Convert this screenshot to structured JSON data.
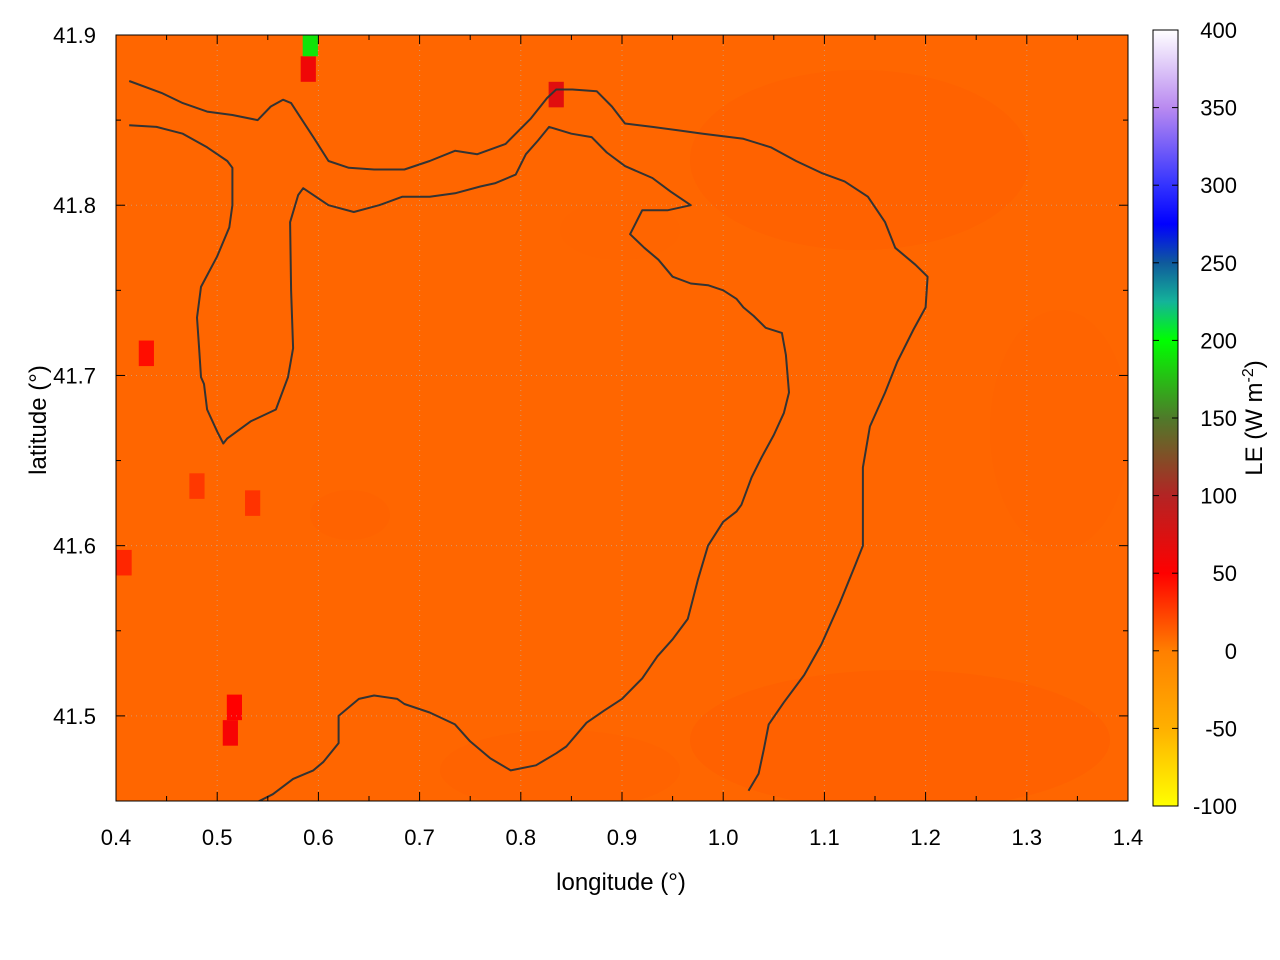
{
  "chart_data": {
    "type": "heatmap",
    "xlabel": "longitude (°)",
    "ylabel": "latitude (°)",
    "xlim": [
      0.4,
      1.4
    ],
    "ylim": [
      41.45,
      41.9
    ],
    "x_ticks": [
      "0.4",
      "0.5",
      "0.6",
      "0.7",
      "0.8",
      "0.9",
      "1.0",
      "1.1",
      "1.2",
      "1.3",
      "1.4"
    ],
    "x_tick_values": [
      0.4,
      0.5,
      0.6,
      0.7,
      0.8,
      0.9,
      1.0,
      1.1,
      1.2,
      1.3,
      1.4
    ],
    "y_ticks": [
      "41.5",
      "41.6",
      "41.7",
      "41.8",
      "41.9"
    ],
    "y_tick_values": [
      41.5,
      41.6,
      41.7,
      41.8,
      41.9
    ],
    "grid": true,
    "field_value": 10,
    "colorbar": {
      "label_base": "LE (W m",
      "label_sup": "-2",
      "label_end": ")",
      "range": [
        -100,
        400
      ],
      "ticks": [
        "400",
        "350",
        "300",
        "250",
        "200",
        "150",
        "100",
        "50",
        "0",
        "-50",
        "-100"
      ],
      "tick_values": [
        400,
        350,
        300,
        250,
        200,
        150,
        100,
        50,
        0,
        -50,
        -100
      ],
      "stops": [
        {
          "value": 400,
          "color": "#ffffff"
        },
        {
          "value": 350,
          "color": "#b98af0"
        },
        {
          "value": 300,
          "color": "#3333ff"
        },
        {
          "value": 275,
          "color": "#0000ff"
        },
        {
          "value": 250,
          "color": "#0f5a9c"
        },
        {
          "value": 225,
          "color": "#14b39a"
        },
        {
          "value": 200,
          "color": "#00ff00"
        },
        {
          "value": 150,
          "color": "#4f7a2a"
        },
        {
          "value": 100,
          "color": "#b32424"
        },
        {
          "value": 50,
          "color": "#ff0000"
        },
        {
          "value": 0,
          "color": "#ff7f00"
        },
        {
          "value": -50,
          "color": "#ffb000"
        },
        {
          "value": -100,
          "color": "#ffff00"
        }
      ]
    },
    "hotspots": [
      {
        "lon": 0.59,
        "lat": 41.88,
        "value": 60
      },
      {
        "lon": 0.592,
        "lat": 41.895,
        "value": 190
      },
      {
        "lon": 0.835,
        "lat": 41.865,
        "value": 70
      },
      {
        "lon": 0.43,
        "lat": 41.713,
        "value": 45
      },
      {
        "lon": 0.517,
        "lat": 41.505,
        "value": 50
      },
      {
        "lon": 0.513,
        "lat": 41.49,
        "value": 55
      },
      {
        "lon": 0.408,
        "lat": 41.59,
        "value": 35
      },
      {
        "lon": 0.535,
        "lat": 41.625,
        "value": 30
      },
      {
        "lon": 0.48,
        "lat": 41.635,
        "value": 28
      }
    ],
    "contours": [
      [
        [
          0.413,
          41.873
        ],
        [
          0.445,
          41.866
        ],
        [
          0.466,
          41.86
        ],
        [
          0.49,
          41.855
        ],
        [
          0.515,
          41.853
        ],
        [
          0.54,
          41.85
        ],
        [
          0.553,
          41.858
        ],
        [
          0.565,
          41.862
        ],
        [
          0.573,
          41.86
        ],
        [
          0.595,
          41.84
        ],
        [
          0.61,
          41.826
        ],
        [
          0.63,
          41.822
        ],
        [
          0.655,
          41.821
        ],
        [
          0.685,
          41.821
        ],
        [
          0.71,
          41.826
        ],
        [
          0.735,
          41.832
        ],
        [
          0.757,
          41.83
        ],
        [
          0.785,
          41.836
        ],
        [
          0.81,
          41.851
        ],
        [
          0.826,
          41.863
        ],
        [
          0.835,
          41.868
        ],
        [
          0.851,
          41.868
        ],
        [
          0.875,
          41.867
        ],
        [
          0.89,
          41.858
        ],
        [
          0.903,
          41.848
        ],
        [
          0.93,
          41.846
        ],
        [
          0.955,
          41.844
        ],
        [
          0.98,
          41.842
        ],
        [
          1.02,
          41.839
        ],
        [
          1.047,
          41.834
        ],
        [
          1.072,
          41.826
        ],
        [
          1.097,
          41.819
        ],
        [
          1.12,
          41.814
        ],
        [
          1.143,
          41.805
        ],
        [
          1.16,
          41.79
        ],
        [
          1.17,
          41.775
        ],
        [
          1.19,
          41.765
        ],
        [
          1.202,
          41.758
        ],
        [
          1.2,
          41.74
        ],
        [
          1.188,
          41.727
        ],
        [
          1.172,
          41.708
        ],
        [
          1.16,
          41.69
        ],
        [
          1.145,
          41.67
        ],
        [
          1.138,
          41.646
        ],
        [
          1.138,
          41.618
        ],
        [
          1.138,
          41.6
        ],
        [
          1.13,
          41.588
        ],
        [
          1.115,
          41.566
        ],
        [
          1.097,
          41.542
        ],
        [
          1.08,
          41.524
        ],
        [
          1.06,
          41.508
        ],
        [
          1.045,
          41.495
        ],
        [
          1.04,
          41.48
        ],
        [
          1.035,
          41.466
        ],
        [
          1.025,
          41.456
        ]
      ],
      [
        [
          0.413,
          41.847
        ],
        [
          0.44,
          41.846
        ],
        [
          0.466,
          41.842
        ],
        [
          0.49,
          41.834
        ],
        [
          0.51,
          41.826
        ],
        [
          0.515,
          41.822
        ],
        [
          0.515,
          41.8
        ],
        [
          0.512,
          41.787
        ],
        [
          0.5,
          41.77
        ],
        [
          0.484,
          41.752
        ],
        [
          0.48,
          41.734
        ],
        [
          0.482,
          41.717
        ],
        [
          0.484,
          41.699
        ],
        [
          0.487,
          41.695
        ],
        [
          0.49,
          41.68
        ],
        [
          0.5,
          41.667
        ],
        [
          0.506,
          41.66
        ],
        [
          0.51,
          41.663
        ],
        [
          0.533,
          41.673
        ],
        [
          0.558,
          41.68
        ],
        [
          0.57,
          41.699
        ],
        [
          0.575,
          41.716
        ],
        [
          0.573,
          41.75
        ],
        [
          0.572,
          41.79
        ],
        [
          0.58,
          41.806
        ],
        [
          0.585,
          41.81
        ],
        [
          0.61,
          41.8
        ],
        [
          0.635,
          41.796
        ],
        [
          0.66,
          41.8
        ],
        [
          0.683,
          41.805
        ],
        [
          0.71,
          41.805
        ],
        [
          0.735,
          41.807
        ],
        [
          0.76,
          41.811
        ],
        [
          0.775,
          41.813
        ],
        [
          0.795,
          41.818
        ],
        [
          0.805,
          41.83
        ],
        [
          0.817,
          41.838
        ],
        [
          0.828,
          41.846
        ],
        [
          0.85,
          41.842
        ],
        [
          0.87,
          41.84
        ],
        [
          0.885,
          41.831
        ],
        [
          0.903,
          41.823
        ],
        [
          0.93,
          41.816
        ],
        [
          0.948,
          41.808
        ],
        [
          0.968,
          41.8
        ],
        [
          0.945,
          41.797
        ],
        [
          0.92,
          41.797
        ],
        [
          0.908,
          41.783
        ],
        [
          0.922,
          41.775
        ],
        [
          0.936,
          41.768
        ],
        [
          0.95,
          41.758
        ],
        [
          0.968,
          41.754
        ],
        [
          0.985,
          41.753
        ],
        [
          1.0,
          41.75
        ],
        [
          1.013,
          41.745
        ],
        [
          1.02,
          41.74
        ],
        [
          1.03,
          41.735
        ],
        [
          1.042,
          41.728
        ],
        [
          1.058,
          41.725
        ],
        [
          1.062,
          41.712
        ],
        [
          1.065,
          41.69
        ],
        [
          1.06,
          41.678
        ],
        [
          1.05,
          41.665
        ],
        [
          1.038,
          41.652
        ],
        [
          1.028,
          41.64
        ],
        [
          1.018,
          41.624
        ],
        [
          1.013,
          41.62
        ],
        [
          1.0,
          41.614
        ],
        [
          0.985,
          41.6
        ],
        [
          0.975,
          41.58
        ],
        [
          0.965,
          41.557
        ],
        [
          0.95,
          41.545
        ],
        [
          0.935,
          41.535
        ],
        [
          0.92,
          41.522
        ],
        [
          0.9,
          41.51
        ],
        [
          0.882,
          41.503
        ],
        [
          0.865,
          41.496
        ],
        [
          0.845,
          41.482
        ],
        [
          0.835,
          41.478
        ],
        [
          0.815,
          41.471
        ],
        [
          0.79,
          41.468
        ],
        [
          0.77,
          41.475
        ],
        [
          0.75,
          41.485
        ],
        [
          0.735,
          41.495
        ],
        [
          0.71,
          41.502
        ],
        [
          0.685,
          41.507
        ],
        [
          0.678,
          41.51
        ],
        [
          0.655,
          41.512
        ],
        [
          0.64,
          41.51
        ],
        [
          0.62,
          41.5
        ],
        [
          0.62,
          41.484
        ],
        [
          0.605,
          41.473
        ],
        [
          0.595,
          41.468
        ],
        [
          0.587,
          41.466
        ],
        [
          0.575,
          41.463
        ],
        [
          0.555,
          41.454
        ],
        [
          0.535,
          41.448
        ],
        [
          0.522,
          41.443
        ]
      ]
    ]
  }
}
